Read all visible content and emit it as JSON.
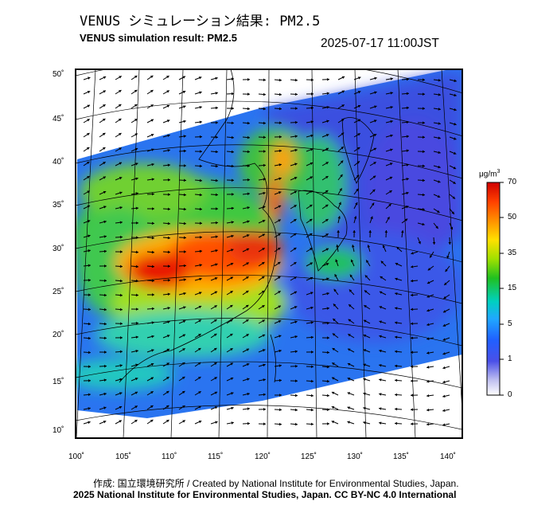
{
  "title_jp": "VENUS シミュレーション結果: PM2.5",
  "title_en": "VENUS simulation result: PM2.5",
  "timestamp": "2025-07-17 11:00JST",
  "lat_ticks": [
    "50˚",
    "45˚",
    "40˚",
    "35˚",
    "30˚",
    "25˚",
    "20˚",
    "15˚",
    "10˚"
  ],
  "lon_ticks": [
    "100˚",
    "105˚",
    "110˚",
    "115˚",
    "120˚",
    "125˚",
    "130˚",
    "135˚",
    "140˚"
  ],
  "colorbar": {
    "unit": "μg/m",
    "unit_sup": "3",
    "labels": [
      "70",
      "50",
      "35",
      "15",
      "5",
      "1",
      "0"
    ],
    "colors": [
      "#d00000",
      "#ff4000",
      "#ffa000",
      "#ffee00",
      "#a0e000",
      "#20c020",
      "#00d8c0",
      "#20a8ff",
      "#2060ff",
      "#4a50e8",
      "#c0c0f0",
      "#ffffff"
    ]
  },
  "footer": {
    "credit": "作成: 国立環境研究所 / Created by National Institute for Environmental Studies, Japan.",
    "license": "2025 National Institute for Environmental Studies, Japan. CC BY-NC 4.0 International"
  }
}
